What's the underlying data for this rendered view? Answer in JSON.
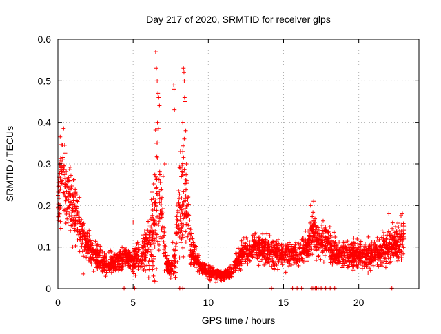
{
  "chart_data": {
    "type": "scatter",
    "title": "Day 217 of 2020, SRMTID for receiver glps",
    "xlabel": "GPS time / hours",
    "ylabel": "SRMTID / TECUs",
    "xlim": [
      0,
      24
    ],
    "ylim": [
      0,
      0.6
    ],
    "xticks": [
      0,
      5,
      10,
      15,
      20
    ],
    "yticks": [
      0,
      0.1,
      0.2,
      0.3,
      0.4,
      0.5,
      0.6
    ],
    "xtick_labels": [
      "0",
      "5",
      "10",
      "15",
      "20"
    ],
    "ytick_labels": [
      "0",
      "0.1",
      "0.2",
      "0.3",
      "0.4",
      "0.5",
      "0.6"
    ],
    "grid": true,
    "marker": "plus",
    "color": "#ff0000",
    "point_count": 3000,
    "time_range_hours": [
      0,
      23
    ],
    "profile": {
      "x": [
        0.0,
        0.2,
        0.5,
        1.0,
        1.5,
        2.0,
        2.5,
        3.0,
        3.5,
        4.0,
        4.5,
        5.0,
        5.5,
        6.0,
        6.3,
        6.6,
        6.8,
        7.0,
        7.2,
        7.5,
        7.8,
        8.0,
        8.2,
        8.4,
        8.6,
        8.8,
        9.0,
        9.5,
        10.0,
        10.5,
        11.0,
        11.5,
        12.0,
        12.5,
        13.0,
        14.0,
        15.0,
        16.0,
        16.5,
        17.0,
        17.3,
        17.8,
        18.3,
        19.0,
        20.0,
        21.0,
        22.0,
        22.5,
        23.0
      ],
      "y": [
        0.2,
        0.26,
        0.25,
        0.2,
        0.14,
        0.1,
        0.08,
        0.065,
        0.06,
        0.07,
        0.075,
        0.07,
        0.08,
        0.1,
        0.13,
        0.2,
        0.22,
        0.13,
        0.06,
        0.05,
        0.08,
        0.17,
        0.2,
        0.22,
        0.18,
        0.11,
        0.08,
        0.05,
        0.04,
        0.035,
        0.03,
        0.04,
        0.07,
        0.09,
        0.1,
        0.09,
        0.085,
        0.08,
        0.095,
        0.14,
        0.11,
        0.12,
        0.09,
        0.08,
        0.08,
        0.08,
        0.1,
        0.11,
        0.12
      ],
      "spread": [
        0.06,
        0.08,
        0.07,
        0.06,
        0.04,
        0.03,
        0.025,
        0.02,
        0.02,
        0.02,
        0.02,
        0.025,
        0.03,
        0.05,
        0.08,
        0.15,
        0.12,
        0.06,
        0.02,
        0.015,
        0.04,
        0.07,
        0.1,
        0.1,
        0.06,
        0.04,
        0.025,
        0.015,
        0.012,
        0.01,
        0.01,
        0.012,
        0.02,
        0.025,
        0.025,
        0.025,
        0.025,
        0.025,
        0.03,
        0.04,
        0.03,
        0.035,
        0.025,
        0.025,
        0.025,
        0.03,
        0.03,
        0.035,
        0.04
      ]
    },
    "spikes": [
      {
        "x": 0.15,
        "y": 0.365
      },
      {
        "x": 0.3,
        "y": 0.345
      },
      {
        "x": 0.45,
        "y": 0.345
      },
      {
        "x": 6.5,
        "y": 0.57
      },
      {
        "x": 6.55,
        "y": 0.53
      },
      {
        "x": 6.6,
        "y": 0.5
      },
      {
        "x": 6.65,
        "y": 0.47
      },
      {
        "x": 6.7,
        "y": 0.46
      },
      {
        "x": 6.75,
        "y": 0.44
      },
      {
        "x": 6.62,
        "y": 0.4
      },
      {
        "x": 6.68,
        "y": 0.385
      },
      {
        "x": 6.55,
        "y": 0.35
      },
      {
        "x": 7.7,
        "y": 0.49
      },
      {
        "x": 7.72,
        "y": 0.48
      },
      {
        "x": 7.75,
        "y": 0.43
      },
      {
        "x": 8.35,
        "y": 0.53
      },
      {
        "x": 8.38,
        "y": 0.52
      },
      {
        "x": 8.4,
        "y": 0.5
      },
      {
        "x": 8.42,
        "y": 0.46
      },
      {
        "x": 8.45,
        "y": 0.45
      },
      {
        "x": 8.3,
        "y": 0.4
      },
      {
        "x": 8.5,
        "y": 0.38
      },
      {
        "x": 8.4,
        "y": 0.36
      },
      {
        "x": 8.3,
        "y": 0.33
      },
      {
        "x": 8.55,
        "y": 0.3
      },
      {
        "x": 7.1,
        "y": 0.3
      },
      {
        "x": 7.0,
        "y": 0.27
      },
      {
        "x": 3.0,
        "y": 0.16
      },
      {
        "x": 5.0,
        "y": 0.16
      },
      {
        "x": 17.0,
        "y": 0.21
      },
      {
        "x": 16.8,
        "y": 0.2
      },
      {
        "x": 22.0,
        "y": 0.18
      },
      {
        "x": 22.9,
        "y": 0.18
      },
      {
        "x": 1.7,
        "y": 0.035
      },
      {
        "x": 7.5,
        "y": 0.025
      },
      {
        "x": 10.5,
        "y": 0.015
      }
    ],
    "baseline_points": [
      4.4,
      5.1,
      8.1,
      8.3,
      14.2,
      15.6,
      15.9,
      16.2,
      16.9,
      17.0,
      17.1,
      17.2,
      17.3,
      17.5,
      17.8,
      18.1,
      18.4,
      22.2
    ]
  }
}
